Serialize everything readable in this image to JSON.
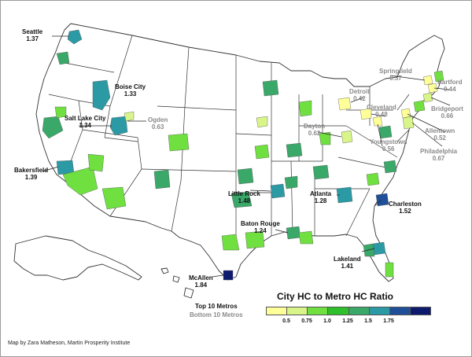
{
  "title": "City HC to Metro HC Ratio",
  "key": {
    "top": "Top 10 Metros",
    "bottom": "Bottom 10 Metros"
  },
  "legend": {
    "ticks": [
      "0.5",
      "0.75",
      "1.0",
      "1.25",
      "1.5",
      "1.75"
    ],
    "colors": [
      "#ffff99",
      "#d9f58a",
      "#6fe040",
      "#2ec02a",
      "#3aa868",
      "#2b9aa4",
      "#1e4f98",
      "#0d1a6e"
    ]
  },
  "credit": "Map by Zara Matheson, Martin Prosperity Institute",
  "top_metros": [
    {
      "city": "Seattle",
      "value": "1.37"
    },
    {
      "city": "Boise City",
      "value": "1.33"
    },
    {
      "city": "Salt Lake City",
      "value": "1.34"
    },
    {
      "city": "Bakersfield",
      "value": "1.39"
    },
    {
      "city": "Little Rock",
      "value": "1.48"
    },
    {
      "city": "Atlanta",
      "value": "1.28"
    },
    {
      "city": "Charleston",
      "value": "1.52"
    },
    {
      "city": "Baton Rouge",
      "value": "1.24"
    },
    {
      "city": "Lakeland",
      "value": "1.41"
    },
    {
      "city": "McAllen",
      "value": "1.84"
    }
  ],
  "bottom_metros": [
    {
      "city": "Ogden",
      "value": "0.63"
    },
    {
      "city": "Detroit",
      "value": "0.42"
    },
    {
      "city": "Springfield",
      "value": "0.57"
    },
    {
      "city": "Hartford",
      "value": "0.44"
    },
    {
      "city": "Cleveland",
      "value": "0.48"
    },
    {
      "city": "Bridgeport",
      "value": "0.66"
    },
    {
      "city": "Dayton",
      "value": "0.62"
    },
    {
      "city": "Allentown",
      "value": "0.52"
    },
    {
      "city": "Youngstown",
      "value": "0.56"
    },
    {
      "city": "Philadelphia",
      "value": "0.67"
    }
  ]
}
